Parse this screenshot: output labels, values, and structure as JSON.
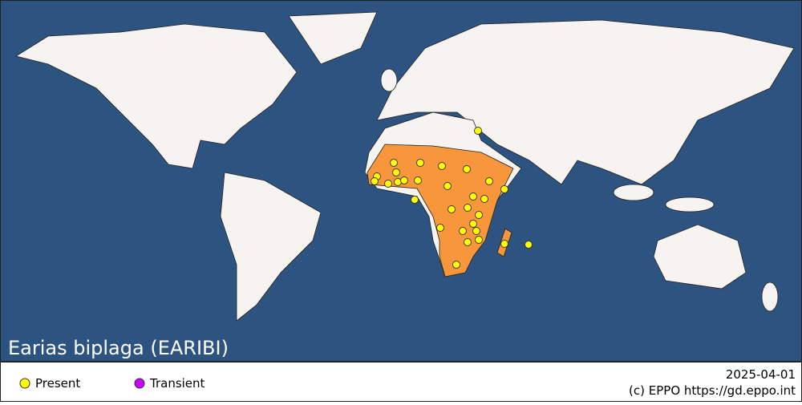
{
  "map": {
    "title": "Earias biplaga (EARIBI)"
  },
  "legend": {
    "items": [
      "Present",
      "Transient"
    ]
  },
  "footer": {
    "date": "2025-04-01",
    "credit": "(c) EPPO https://gd.eppo.int"
  }
}
